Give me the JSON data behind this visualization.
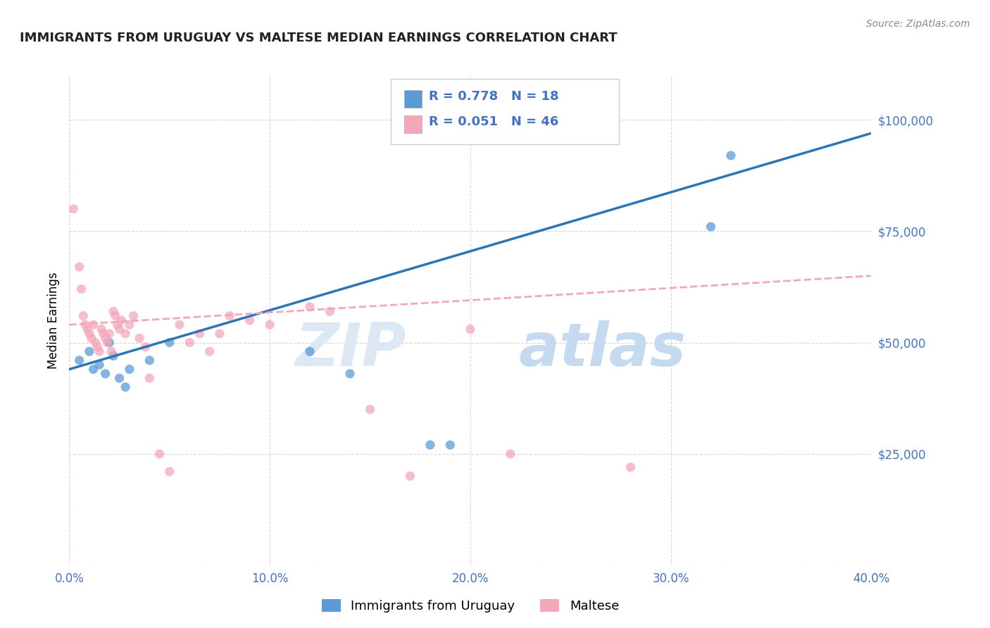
{
  "title": "IMMIGRANTS FROM URUGUAY VS MALTESE MEDIAN EARNINGS CORRELATION CHART",
  "source": "Source: ZipAtlas.com",
  "ylabel": "Median Earnings",
  "xlim": [
    0.0,
    0.4
  ],
  "ylim": [
    0,
    110000
  ],
  "yticks": [
    0,
    25000,
    50000,
    75000,
    100000
  ],
  "xticks": [
    0.0,
    0.1,
    0.2,
    0.3,
    0.4
  ],
  "xtick_labels": [
    "0.0%",
    "10.0%",
    "20.0%",
    "30.0%",
    "40.0%"
  ],
  "ytick_labels": [
    "",
    "$25,000",
    "$50,000",
    "$75,000",
    "$100,000"
  ],
  "blue_color": "#5b9bd5",
  "pink_color": "#f4a7b9",
  "blue_line_color": "#2e75b6",
  "pink_line_color": "#f4a7b9",
  "legend_label_blue": "Immigrants from Uruguay",
  "legend_label_pink": "Maltese",
  "R_blue": "0.778",
  "N_blue": "18",
  "R_pink": "0.051",
  "N_pink": "46",
  "axis_color": "#4472c4",
  "blue_points_x": [
    0.005,
    0.01,
    0.012,
    0.015,
    0.018,
    0.02,
    0.022,
    0.025,
    0.028,
    0.03,
    0.04,
    0.05,
    0.12,
    0.14,
    0.18,
    0.19,
    0.32,
    0.33
  ],
  "blue_points_y": [
    46000,
    48000,
    44000,
    45000,
    43000,
    50000,
    47000,
    42000,
    40000,
    44000,
    46000,
    50000,
    48000,
    43000,
    27000,
    27000,
    76000,
    92000
  ],
  "pink_points_x": [
    0.002,
    0.005,
    0.006,
    0.007,
    0.008,
    0.009,
    0.01,
    0.011,
    0.012,
    0.013,
    0.014,
    0.015,
    0.016,
    0.017,
    0.018,
    0.019,
    0.02,
    0.021,
    0.022,
    0.023,
    0.024,
    0.025,
    0.026,
    0.028,
    0.03,
    0.032,
    0.035,
    0.038,
    0.04,
    0.045,
    0.05,
    0.055,
    0.06,
    0.065,
    0.07,
    0.075,
    0.08,
    0.09,
    0.1,
    0.12,
    0.13,
    0.15,
    0.17,
    0.2,
    0.22,
    0.28
  ],
  "pink_points_y": [
    80000,
    67000,
    62000,
    56000,
    54000,
    53000,
    52000,
    51000,
    54000,
    50000,
    49000,
    48000,
    53000,
    52000,
    51000,
    50000,
    52000,
    48000,
    57000,
    56000,
    54000,
    53000,
    55000,
    52000,
    54000,
    56000,
    51000,
    49000,
    42000,
    25000,
    21000,
    54000,
    50000,
    52000,
    48000,
    52000,
    56000,
    55000,
    54000,
    58000,
    57000,
    35000,
    20000,
    53000,
    25000,
    22000
  ],
  "blue_trendline_x": [
    0.0,
    0.4
  ],
  "blue_trendline_y": [
    44000,
    97000
  ],
  "pink_trendline_x": [
    0.0,
    0.4
  ],
  "pink_trendline_y": [
    54000,
    65000
  ],
  "background_color": "#ffffff",
  "grid_color": "#cccccc"
}
